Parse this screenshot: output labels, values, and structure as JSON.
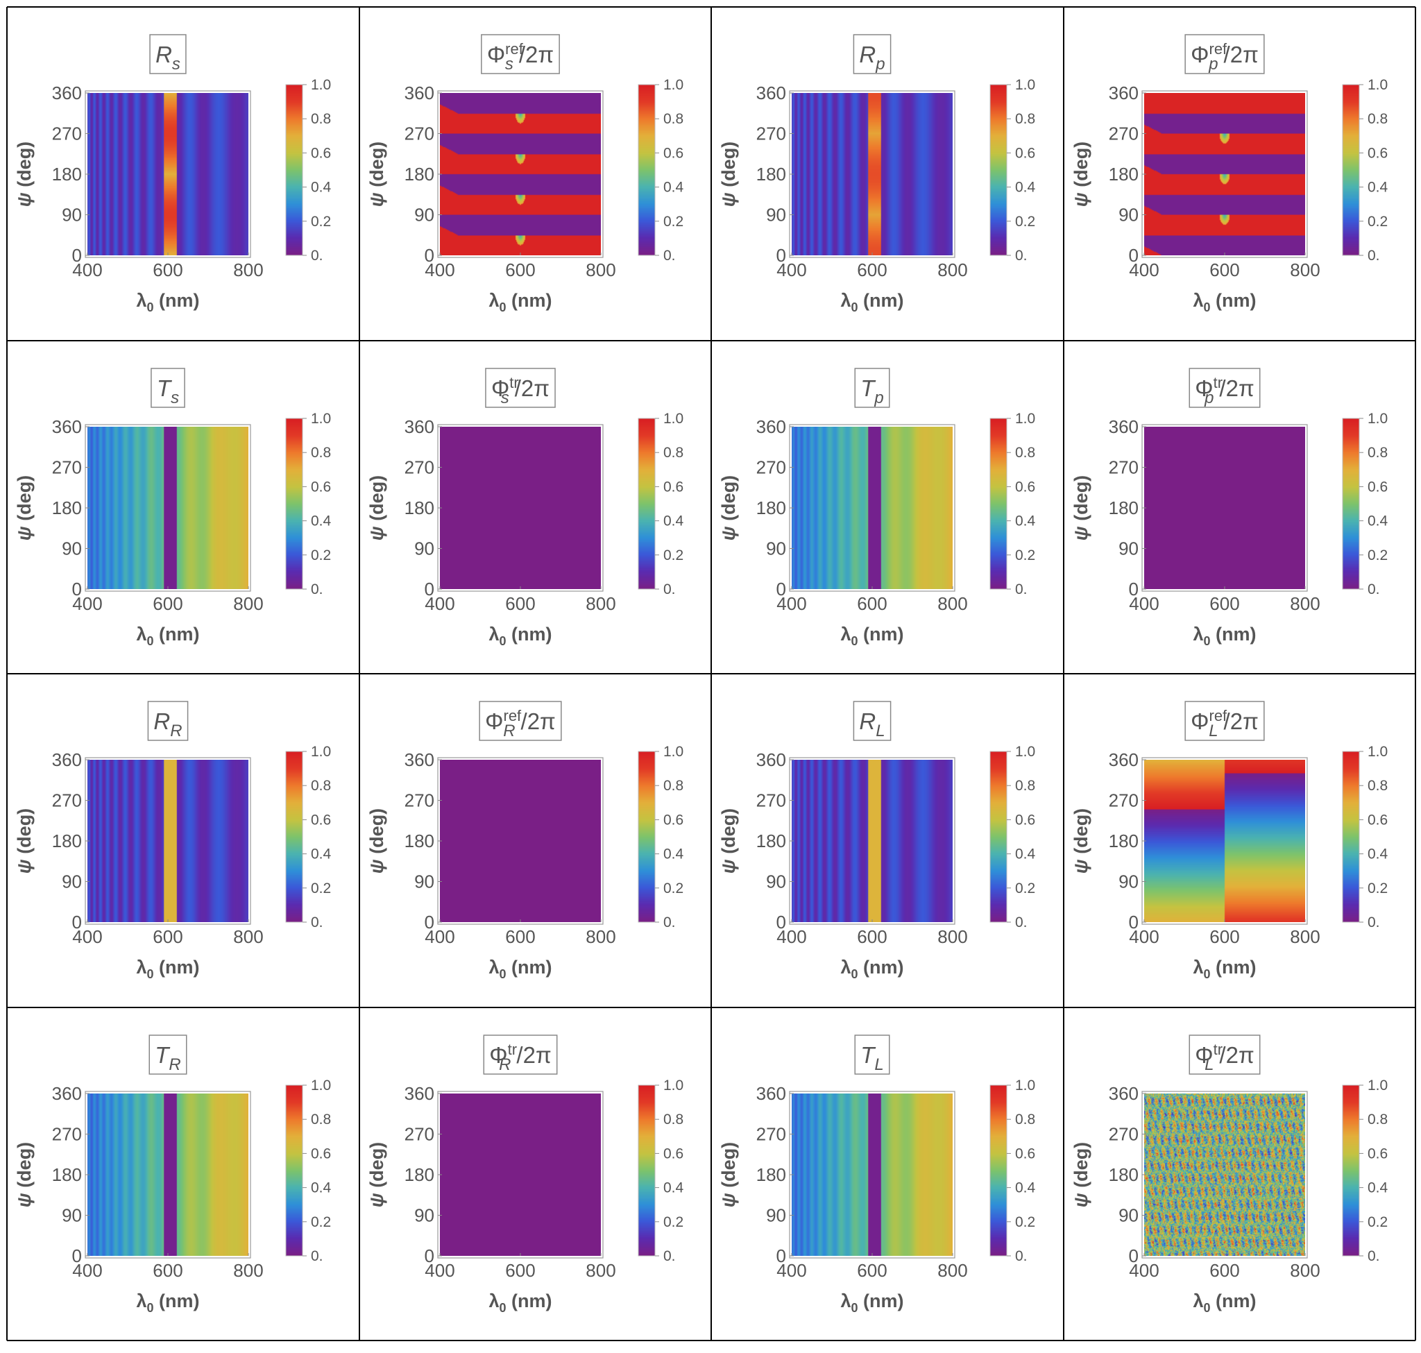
{
  "page": {
    "rows": 4,
    "cols": 4
  },
  "colorbar": {
    "ticks": [
      "1.0",
      "0.8",
      "0.6",
      "0.4",
      "0.2",
      "0."
    ],
    "min": 0,
    "max": 1
  },
  "colormap": [
    "#7a1f86",
    "#5b2bb0",
    "#3b58d8",
    "#2f90d8",
    "#4bb3b0",
    "#7ec36b",
    "#c5c341",
    "#e3b03a",
    "#ee7a2c",
    "#e23a26",
    "#d81f23"
  ],
  "chart_data": [
    {
      "id": "Rs",
      "type": "heatmap",
      "title": {
        "main": "R",
        "sub": "s",
        "sup": ""
      },
      "xlabel": {
        "main": "λ",
        "sub": "0",
        "rest": " (nm)"
      },
      "ylabel": {
        "main": "ψ",
        "rest": " (deg)"
      },
      "xticks": [
        "400",
        "600",
        "800"
      ],
      "yticks": [
        "360",
        "270",
        "180",
        "90",
        "0"
      ],
      "xlim": [
        400,
        800
      ],
      "ylim": [
        0,
        360
      ],
      "pattern": "R",
      "params": {
        "base": 0.08,
        "amp": 0.12,
        "res": 0.7,
        "resMod": 0.2,
        "resPhase": 1
      }
    },
    {
      "id": "PhiRefS",
      "type": "heatmap",
      "title": {
        "main": "Φ",
        "sub": "s",
        "sup": "ref",
        "rest": "/2π"
      },
      "xlabel": {
        "main": "λ",
        "sub": "0",
        "rest": " (nm)"
      },
      "ylabel": {
        "main": "ψ",
        "rest": " (deg)"
      },
      "xticks": [
        "400",
        "600",
        "800"
      ],
      "yticks": [
        "360",
        "270",
        "180",
        "90",
        "0"
      ],
      "xlim": [
        400,
        800
      ],
      "ylim": [
        0,
        360
      ],
      "pattern": "PHI",
      "params": {
        "shift": 0
      }
    },
    {
      "id": "Rp",
      "type": "heatmap",
      "title": {
        "main": "R",
        "sub": "p",
        "sup": ""
      },
      "xlabel": {
        "main": "λ",
        "sub": "0",
        "rest": " (nm)"
      },
      "ylabel": {
        "main": "ψ",
        "rest": " (deg)"
      },
      "xticks": [
        "400",
        "600",
        "800"
      ],
      "yticks": [
        "360",
        "270",
        "180",
        "90",
        "0"
      ],
      "xlim": [
        400,
        800
      ],
      "ylim": [
        0,
        360
      ],
      "pattern": "R",
      "params": {
        "base": 0.08,
        "amp": 0.12,
        "res": 0.72,
        "resMod": 0.15,
        "resPhase": 0
      }
    },
    {
      "id": "PhiRefP",
      "type": "heatmap",
      "title": {
        "main": "Φ",
        "sub": "p",
        "sup": "ref",
        "rest": "/2π"
      },
      "xlabel": {
        "main": "λ",
        "sub": "0",
        "rest": " (nm)"
      },
      "ylabel": {
        "main": "ψ",
        "rest": " (deg)"
      },
      "xticks": [
        "400",
        "600",
        "800"
      ],
      "yticks": [
        "360",
        "270",
        "180",
        "90",
        "0"
      ],
      "xlim": [
        400,
        800
      ],
      "ylim": [
        0,
        360
      ],
      "pattern": "PHI",
      "params": {
        "shift": 45
      }
    },
    {
      "id": "Ts",
      "type": "heatmap",
      "title": {
        "main": "T",
        "sub": "s",
        "sup": ""
      },
      "xlabel": {
        "main": "λ",
        "sub": "0",
        "rest": " (nm)"
      },
      "ylabel": {
        "main": "ψ",
        "rest": " (deg)"
      },
      "xticks": [
        "400",
        "600",
        "800"
      ],
      "yticks": [
        "360",
        "270",
        "180",
        "90",
        "0"
      ],
      "xlim": [
        400,
        800
      ],
      "ylim": [
        0,
        360
      ],
      "pattern": "T",
      "params": {}
    },
    {
      "id": "PhiTrS",
      "type": "heatmap",
      "title": {
        "main": "Φ",
        "sub": "s",
        "sup": "tr",
        "rest": "/2π"
      },
      "xlabel": {
        "main": "λ",
        "sub": "0",
        "rest": " (nm)"
      },
      "ylabel": {
        "main": "ψ",
        "rest": " (deg)"
      },
      "xticks": [
        "400",
        "600",
        "800"
      ],
      "yticks": [
        "360",
        "270",
        "180",
        "90",
        "0"
      ],
      "xlim": [
        400,
        800
      ],
      "ylim": [
        0,
        360
      ],
      "pattern": "ZERO",
      "params": {}
    },
    {
      "id": "Tp",
      "type": "heatmap",
      "title": {
        "main": "T",
        "sub": "p",
        "sup": ""
      },
      "xlabel": {
        "main": "λ",
        "sub": "0",
        "rest": " (nm)"
      },
      "ylabel": {
        "main": "ψ",
        "rest": " (deg)"
      },
      "xticks": [
        "400",
        "600",
        "800"
      ],
      "yticks": [
        "360",
        "270",
        "180",
        "90",
        "0"
      ],
      "xlim": [
        400,
        800
      ],
      "ylim": [
        0,
        360
      ],
      "pattern": "T",
      "params": {}
    },
    {
      "id": "PhiTrP",
      "type": "heatmap",
      "title": {
        "main": "Φ",
        "sub": "p",
        "sup": "tr",
        "rest": "/2π"
      },
      "xlabel": {
        "main": "λ",
        "sub": "0",
        "rest": " (nm)"
      },
      "ylabel": {
        "main": "ψ",
        "rest": " (deg)"
      },
      "xticks": [
        "400",
        "600",
        "800"
      ],
      "yticks": [
        "360",
        "270",
        "180",
        "90",
        "0"
      ],
      "xlim": [
        400,
        800
      ],
      "ylim": [
        0,
        360
      ],
      "pattern": "ZERO",
      "params": {}
    },
    {
      "id": "RR",
      "type": "heatmap",
      "title": {
        "main": "R",
        "sub": "R",
        "sup": ""
      },
      "xlabel": {
        "main": "λ",
        "sub": "0",
        "rest": " (nm)"
      },
      "ylabel": {
        "main": "ψ",
        "rest": " (deg)"
      },
      "xticks": [
        "400",
        "600",
        "800"
      ],
      "yticks": [
        "360",
        "270",
        "180",
        "90",
        "0"
      ],
      "xlim": [
        400,
        800
      ],
      "ylim": [
        0,
        360
      ],
      "pattern": "R",
      "params": {
        "base": 0.08,
        "amp": 0.12,
        "res": 0.68,
        "resMod": 0,
        "resPhase": 0
      }
    },
    {
      "id": "PhiRefR",
      "type": "heatmap",
      "title": {
        "main": "Φ",
        "sub": "R",
        "sup": "ref",
        "rest": "/2π"
      },
      "xlabel": {
        "main": "λ",
        "sub": "0",
        "rest": " (nm)"
      },
      "ylabel": {
        "main": "ψ",
        "rest": " (deg)"
      },
      "xticks": [
        "400",
        "600",
        "800"
      ],
      "yticks": [
        "360",
        "270",
        "180",
        "90",
        "0"
      ],
      "xlim": [
        400,
        800
      ],
      "ylim": [
        0,
        360
      ],
      "pattern": "ZERO",
      "params": {}
    },
    {
      "id": "RL",
      "type": "heatmap",
      "title": {
        "main": "R",
        "sub": "L",
        "sup": ""
      },
      "xlabel": {
        "main": "λ",
        "sub": "0",
        "rest": " (nm)"
      },
      "ylabel": {
        "main": "ψ",
        "rest": " (deg)"
      },
      "xticks": [
        "400",
        "600",
        "800"
      ],
      "yticks": [
        "360",
        "270",
        "180",
        "90",
        "0"
      ],
      "xlim": [
        400,
        800
      ],
      "ylim": [
        0,
        360
      ],
      "pattern": "R",
      "params": {
        "base": 0.08,
        "amp": 0.12,
        "res": 0.68,
        "resMod": 0,
        "resPhase": 0
      }
    },
    {
      "id": "PhiRefL",
      "type": "heatmap",
      "title": {
        "main": "Φ",
        "sub": "L",
        "sup": "ref",
        "rest": "/2π"
      },
      "xlabel": {
        "main": "λ",
        "sub": "0",
        "rest": " (nm)"
      },
      "ylabel": {
        "main": "ψ",
        "rest": " (deg)"
      },
      "xticks": [
        "400",
        "600",
        "800"
      ],
      "yticks": [
        "360",
        "270",
        "180",
        "90",
        "0"
      ],
      "xlim": [
        400,
        800
      ],
      "ylim": [
        0,
        360
      ],
      "pattern": "LREF",
      "params": {}
    },
    {
      "id": "TR",
      "type": "heatmap",
      "title": {
        "main": "T",
        "sub": "R",
        "sup": ""
      },
      "xlabel": {
        "main": "λ",
        "sub": "0",
        "rest": " (nm)"
      },
      "ylabel": {
        "main": "ψ",
        "rest": " (deg)"
      },
      "xticks": [
        "400",
        "600",
        "800"
      ],
      "yticks": [
        "360",
        "270",
        "180",
        "90",
        "0"
      ],
      "xlim": [
        400,
        800
      ],
      "ylim": [
        0,
        360
      ],
      "pattern": "T",
      "params": {}
    },
    {
      "id": "PhiTrR",
      "type": "heatmap",
      "title": {
        "main": "Φ",
        "sub": "R",
        "sup": "tr",
        "rest": "/2π"
      },
      "xlabel": {
        "main": "λ",
        "sub": "0",
        "rest": " (nm)"
      },
      "ylabel": {
        "main": "ψ",
        "rest": " (deg)"
      },
      "xticks": [
        "400",
        "600",
        "800"
      ],
      "yticks": [
        "360",
        "270",
        "180",
        "90",
        "0"
      ],
      "xlim": [
        400,
        800
      ],
      "ylim": [
        0,
        360
      ],
      "pattern": "ZERO",
      "params": {}
    },
    {
      "id": "TL",
      "type": "heatmap",
      "title": {
        "main": "T",
        "sub": "L",
        "sup": ""
      },
      "xlabel": {
        "main": "λ",
        "sub": "0",
        "rest": " (nm)"
      },
      "ylabel": {
        "main": "ψ",
        "rest": " (deg)"
      },
      "xticks": [
        "400",
        "600",
        "800"
      ],
      "yticks": [
        "360",
        "270",
        "180",
        "90",
        "0"
      ],
      "xlim": [
        400,
        800
      ],
      "ylim": [
        0,
        360
      ],
      "pattern": "T",
      "params": {}
    },
    {
      "id": "PhiTrL",
      "type": "heatmap",
      "title": {
        "main": "Φ",
        "sub": "L",
        "sup": "tr",
        "rest": "/2π"
      },
      "xlabel": {
        "main": "λ",
        "sub": "0",
        "rest": " (nm)"
      },
      "ylabel": {
        "main": "ψ",
        "rest": " (deg)"
      },
      "xticks": [
        "400",
        "600",
        "800"
      ],
      "yticks": [
        "360",
        "270",
        "180",
        "90",
        "0"
      ],
      "xlim": [
        400,
        800
      ],
      "ylim": [
        0,
        360
      ],
      "pattern": "NOISE",
      "params": {}
    }
  ]
}
